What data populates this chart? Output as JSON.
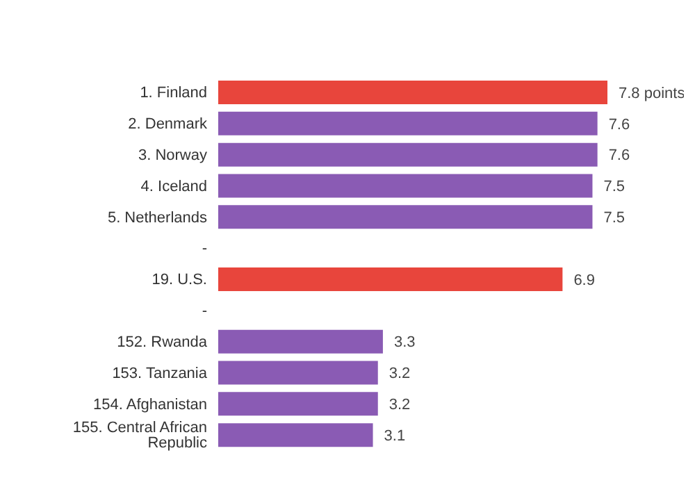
{
  "chart_data": {
    "type": "bar",
    "orientation": "horizontal",
    "categories": [
      "1. Finland",
      "2. Denmark",
      "3. Norway",
      "4. Iceland",
      "5. Netherlands",
      "-",
      "19. U.S.",
      "-",
      "152. Rwanda",
      "153. Tanzania",
      "154. Afghanistan",
      "155. Central African Republic"
    ],
    "values": [
      7.8,
      7.6,
      7.6,
      7.5,
      7.5,
      null,
      6.9,
      null,
      3.3,
      3.2,
      3.2,
      3.1
    ],
    "value_labels": [
      "7.8 points",
      "7.6",
      "7.6",
      "7.5",
      "7.5",
      null,
      "6.9",
      null,
      "3.3",
      "3.2",
      "3.2",
      "3.1"
    ],
    "colors": [
      "#e8453c",
      "#8a5bb4",
      "#8a5bb4",
      "#8a5bb4",
      "#8a5bb4",
      "#8a5bb4",
      "#e8453c",
      "#8a5bb4",
      "#8a5bb4",
      "#8a5bb4",
      "#8a5bb4",
      "#8a5bb4"
    ],
    "grid": false,
    "legend": false
  }
}
